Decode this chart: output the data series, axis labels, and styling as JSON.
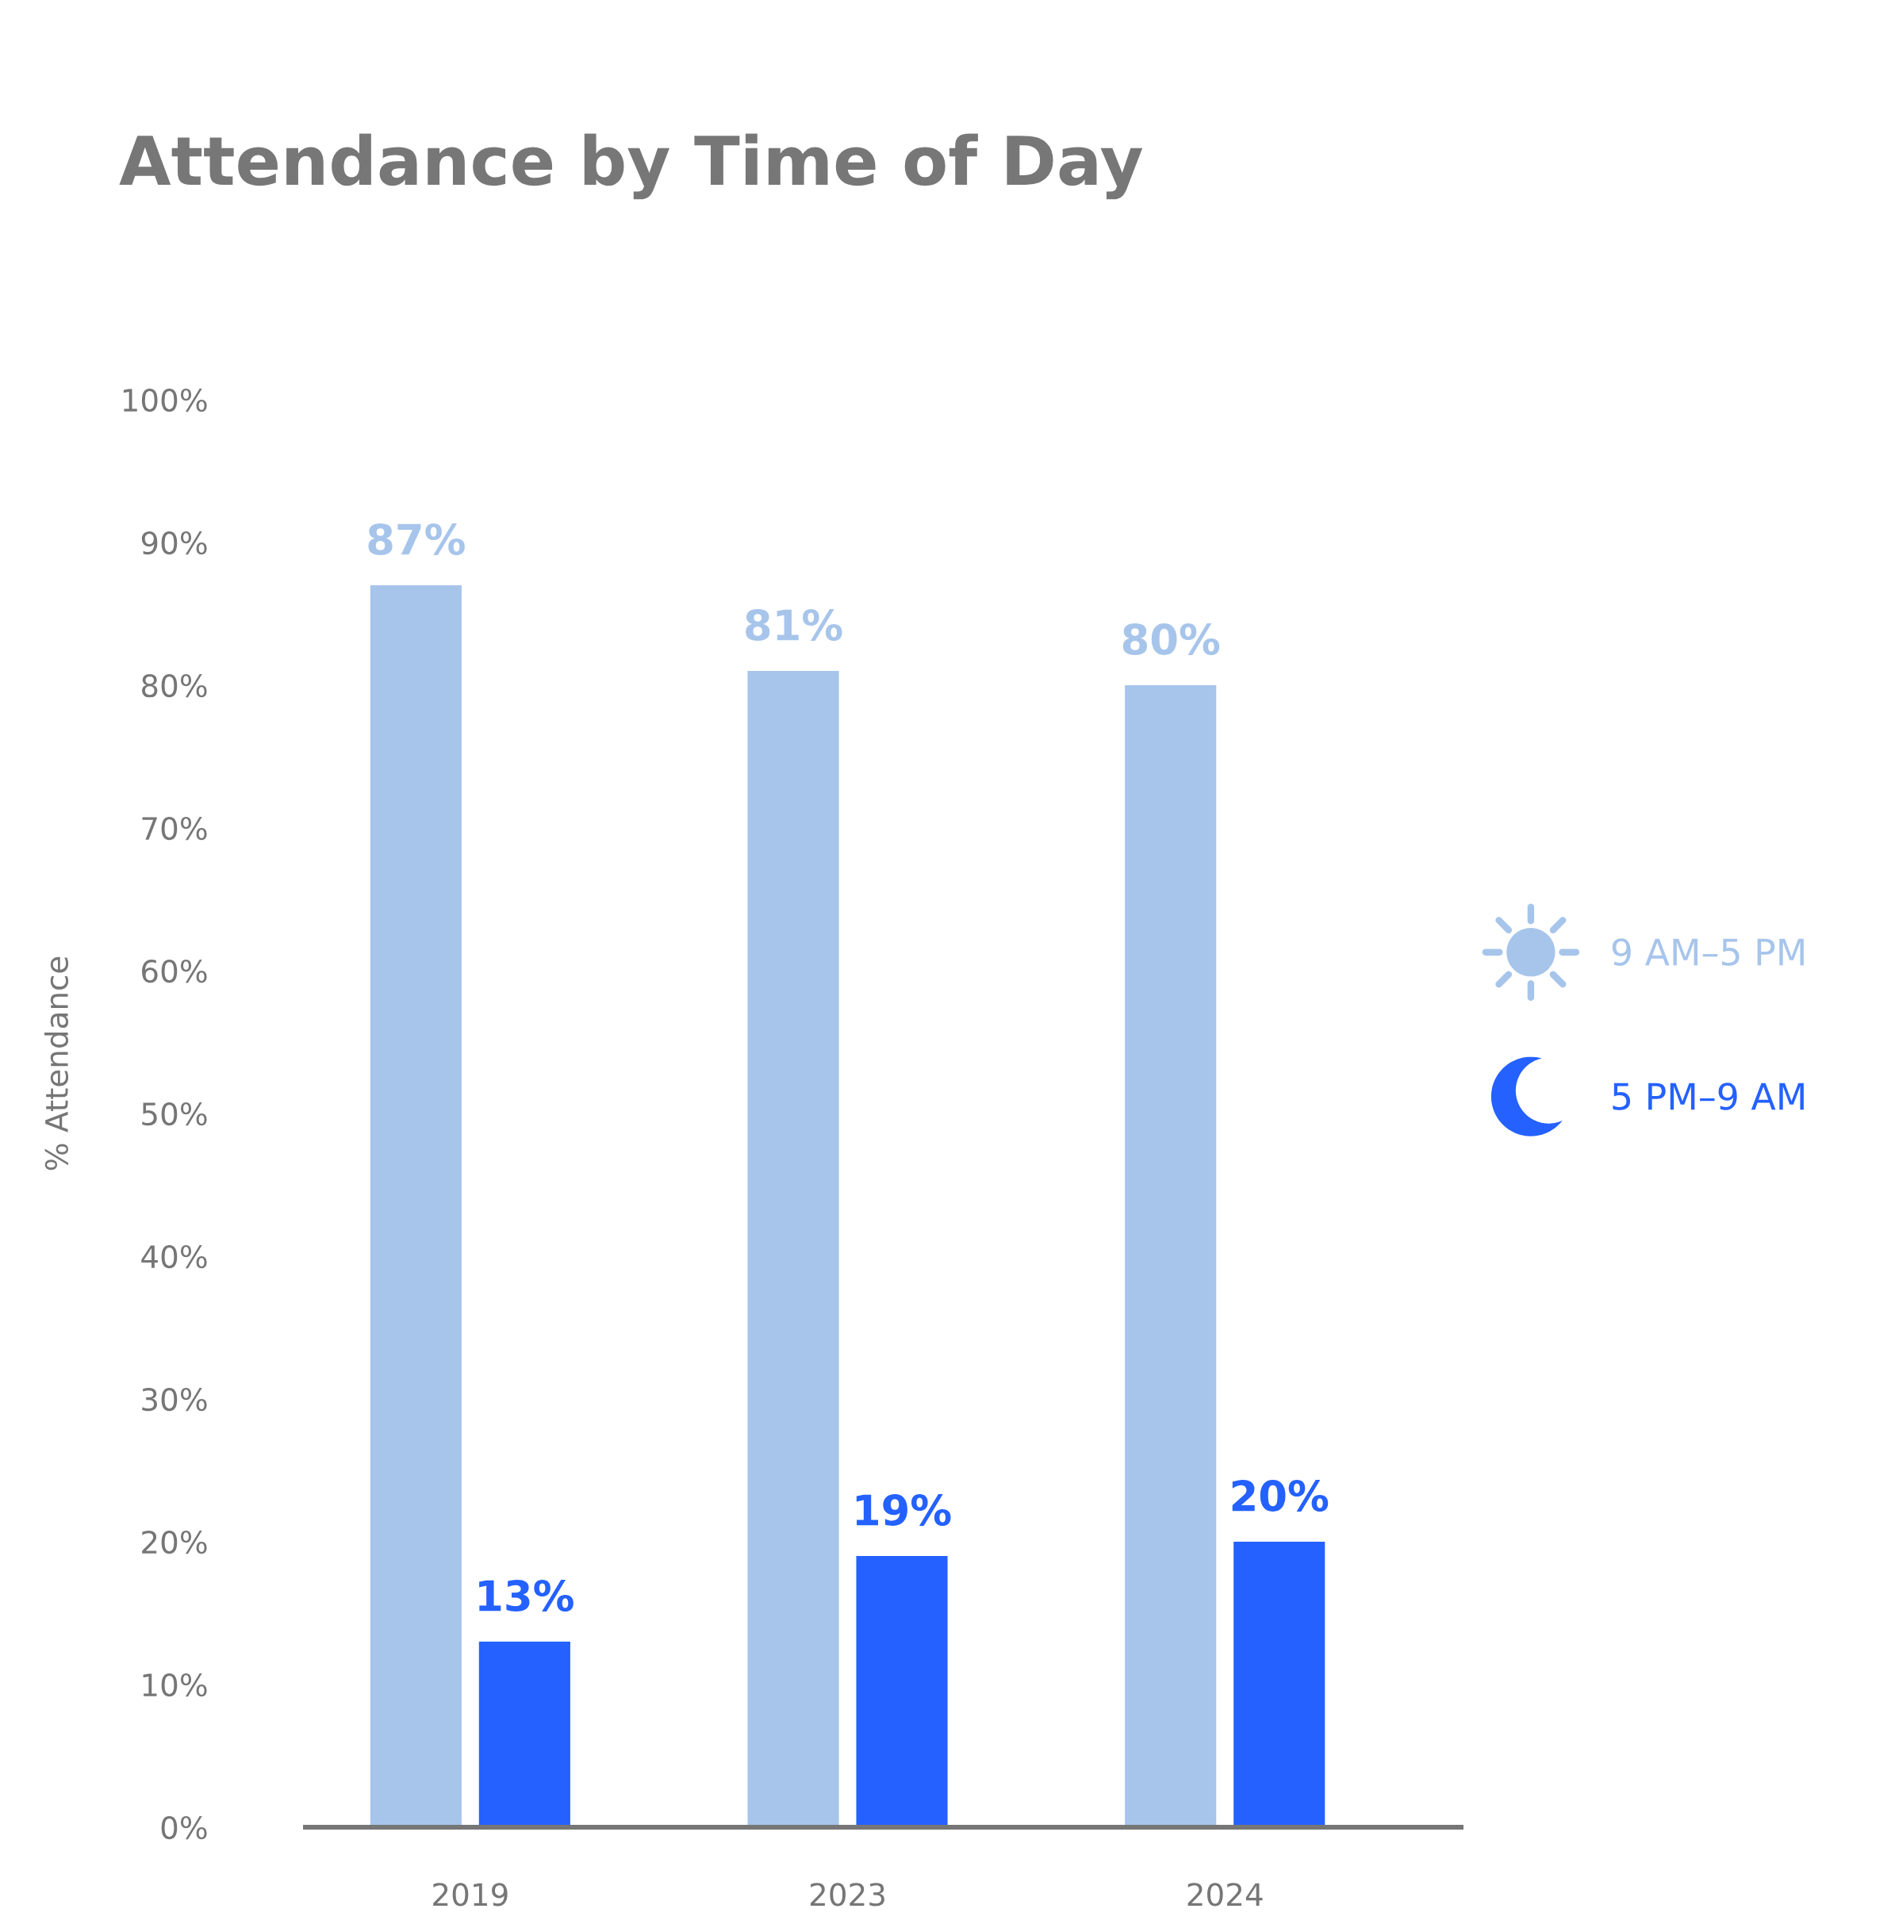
{
  "chart_data": {
    "type": "bar",
    "title": "Attendance by Time of Day",
    "ylabel": "% Attendance",
    "categories": [
      "2019",
      "2023",
      "2024"
    ],
    "series": [
      {
        "name": "9 AM–5 PM",
        "color": "#a7c5eb",
        "values": [
          87,
          81,
          80
        ],
        "value_labels": [
          "87%",
          "81%",
          "80%"
        ]
      },
      {
        "name": "5 PM–9 AM",
        "color": "#2461ff",
        "values": [
          13,
          19,
          20
        ],
        "value_labels": [
          "13%",
          "19%",
          "20%"
        ]
      }
    ],
    "ylim": [
      0,
      100
    ],
    "yticks": [
      {
        "value": 0,
        "label": "0%"
      },
      {
        "value": 10,
        "label": "10%"
      },
      {
        "value": 20,
        "label": "20%"
      },
      {
        "value": 30,
        "label": "30%"
      },
      {
        "value": 40,
        "label": "40%"
      },
      {
        "value": 50,
        "label": "50%"
      },
      {
        "value": 60,
        "label": "60%"
      },
      {
        "value": 70,
        "label": "70%"
      },
      {
        "value": 80,
        "label": "80%"
      },
      {
        "value": 90,
        "label": "90%"
      },
      {
        "value": 100,
        "label": "100%"
      }
    ],
    "legend": "right"
  }
}
